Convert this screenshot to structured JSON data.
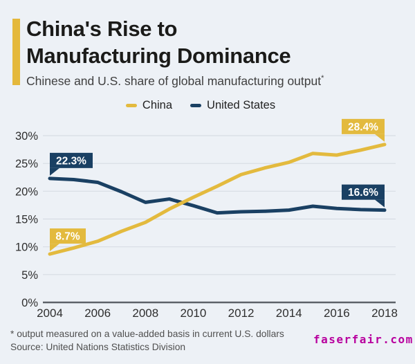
{
  "header": {
    "title_line1": "China's Rise to",
    "title_line2": "Manufacturing Dominance",
    "subtitle": "Chinese and U.S. share of global manufacturing output",
    "subtitle_asterisk": "*"
  },
  "legend": [
    {
      "label": "China",
      "color": "#e3ba3e"
    },
    {
      "label": "United States",
      "color": "#1a4063"
    }
  ],
  "chart_data": {
    "type": "line",
    "title": "Chinese and U.S. share of global manufacturing output",
    "x": [
      2004,
      2005,
      2006,
      2007,
      2008,
      2009,
      2010,
      2011,
      2012,
      2013,
      2014,
      2015,
      2016,
      2017,
      2018
    ],
    "x_tick_labels": [
      "2004",
      "2006",
      "2008",
      "2010",
      "2012",
      "2014",
      "2016",
      "2018"
    ],
    "y_ticks": [
      0,
      5,
      10,
      15,
      20,
      25,
      30
    ],
    "y_tick_labels": [
      "0%",
      "5%",
      "10%",
      "15%",
      "20%",
      "25%",
      "30%"
    ],
    "ylim": [
      0,
      30
    ],
    "grid": true,
    "legend_position": "top",
    "series": [
      {
        "name": "United States",
        "color": "#1a4063",
        "values": [
          22.3,
          22.1,
          21.6,
          19.9,
          18.0,
          18.6,
          17.4,
          16.1,
          16.3,
          16.4,
          16.6,
          17.3,
          16.9,
          16.7,
          16.6
        ]
      },
      {
        "name": "China",
        "color": "#e3ba3e",
        "values": [
          8.7,
          9.8,
          11.0,
          12.8,
          14.4,
          16.8,
          18.9,
          20.9,
          23.0,
          24.2,
          25.2,
          26.8,
          26.5,
          27.4,
          28.4
        ]
      }
    ],
    "callouts": [
      {
        "text": "22.3%",
        "series": "United States",
        "x": 2004,
        "value": 22.3,
        "side": "start"
      },
      {
        "text": "8.7%",
        "series": "China",
        "x": 2004,
        "value": 8.7,
        "side": "start"
      },
      {
        "text": "28.4%",
        "series": "China",
        "x": 2018,
        "value": 28.4,
        "side": "end"
      },
      {
        "text": "16.6%",
        "series": "United States",
        "x": 2018,
        "value": 16.6,
        "side": "end"
      }
    ]
  },
  "footer": {
    "note": "* output measured on a value-added basis in current U.S. dollars",
    "source": "Source: United Nations Statistics Division"
  },
  "watermark": {
    "text": "faserfair.com",
    "color": "#b8009e"
  }
}
